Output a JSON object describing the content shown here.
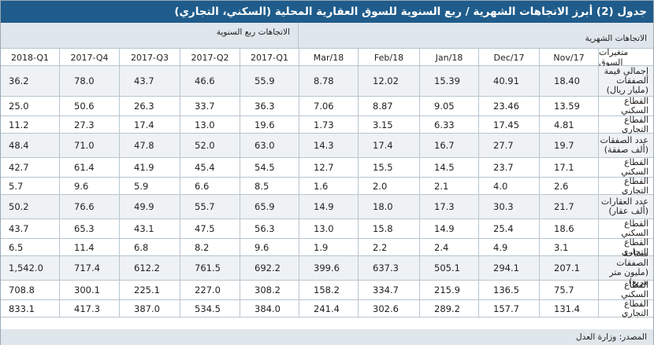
{
  "title": "جدول (2) أبرز الاتجاهات الشهرية / ربع السنوية للسوق العقارية المحلية (السكني، التجاري)",
  "sections": {
    "quarterly": "الاتجاهات ربع السنوية",
    "monthly": "الاتجاهات الشهرية"
  },
  "header": {
    "label_col": "متغيرات السوق",
    "columns": [
      "2018-Q1",
      "2017-Q4",
      "2017-Q3",
      "2017-Q2",
      "2017-Q1",
      "Mar/18",
      "Feb/18",
      "Jan/18",
      "Dec/17",
      "Nov/17"
    ]
  },
  "rows": [
    {
      "label": "إجمالي قيمة الصفقات (مليار ريال)",
      "values": [
        "36.2",
        "78.0",
        "43.7",
        "46.6",
        "55.9",
        "8.78",
        "12.02",
        "15.39",
        "40.91",
        "18.40"
      ]
    },
    {
      "label": "القطاع السكني",
      "values": [
        "25.0",
        "50.6",
        "26.3",
        "33.7",
        "36.3",
        "7.06",
        "8.87",
        "9.05",
        "23.46",
        "13.59"
      ]
    },
    {
      "label": "القطاع التجاري",
      "values": [
        "11.2",
        "27.3",
        "17.4",
        "13.0",
        "19.6",
        "1.73",
        "3.15",
        "6.33",
        "17.45",
        "4.81"
      ]
    },
    {
      "label": "عدد الصفقات (ألف صفقة)",
      "values": [
        "48.4",
        "71.0",
        "47.8",
        "52.0",
        "63.0",
        "14.3",
        "17.4",
        "16.7",
        "27.7",
        "19.7"
      ]
    },
    {
      "label": "القطاع السكني",
      "values": [
        "42.7",
        "61.4",
        "41.9",
        "45.4",
        "54.5",
        "12.7",
        "15.5",
        "14.5",
        "23.7",
        "17.1"
      ]
    },
    {
      "label": "القطاع التجاري",
      "values": [
        "5.7",
        "9.6",
        "5.9",
        "6.6",
        "8.5",
        "1.6",
        "2.0",
        "2.1",
        "4.0",
        "2.6"
      ]
    },
    {
      "label": "عدد العقارات (ألف عقار)",
      "values": [
        "50.2",
        "76.6",
        "49.9",
        "55.7",
        "65.9",
        "14.9",
        "18.0",
        "17.3",
        "30.3",
        "21.7"
      ]
    },
    {
      "label": "القطاع السكني",
      "values": [
        "43.7",
        "65.3",
        "43.1",
        "47.5",
        "56.3",
        "13.0",
        "15.8",
        "14.9",
        "25.4",
        "18.6"
      ]
    },
    {
      "label": "القطاع التجاري",
      "values": [
        "6.5",
        "11.4",
        "6.8",
        "8.2",
        "9.6",
        "1.9",
        "2.2",
        "2.4",
        "4.9",
        "3.1"
      ]
    },
    {
      "label": "مساحة الصفقات (مليون متر مربع)",
      "values": [
        "1,542.0",
        "717.4",
        "612.2",
        "761.5",
        "692.2",
        "399.6",
        "637.3",
        "505.1",
        "294.1",
        "207.1"
      ]
    },
    {
      "label": "القطاع السكني",
      "values": [
        "708.8",
        "300.1",
        "225.1",
        "227.0",
        "308.2",
        "158.2",
        "334.7",
        "215.9",
        "136.5",
        "75.7"
      ]
    },
    {
      "label": "القطاع التجاري",
      "values": [
        "833.1",
        "417.3",
        "387.0",
        "534.5",
        "384.0",
        "241.4",
        "302.6",
        "289.2",
        "157.7",
        "131.4"
      ]
    }
  ],
  "source": "المصدر: وزارة العدل"
}
